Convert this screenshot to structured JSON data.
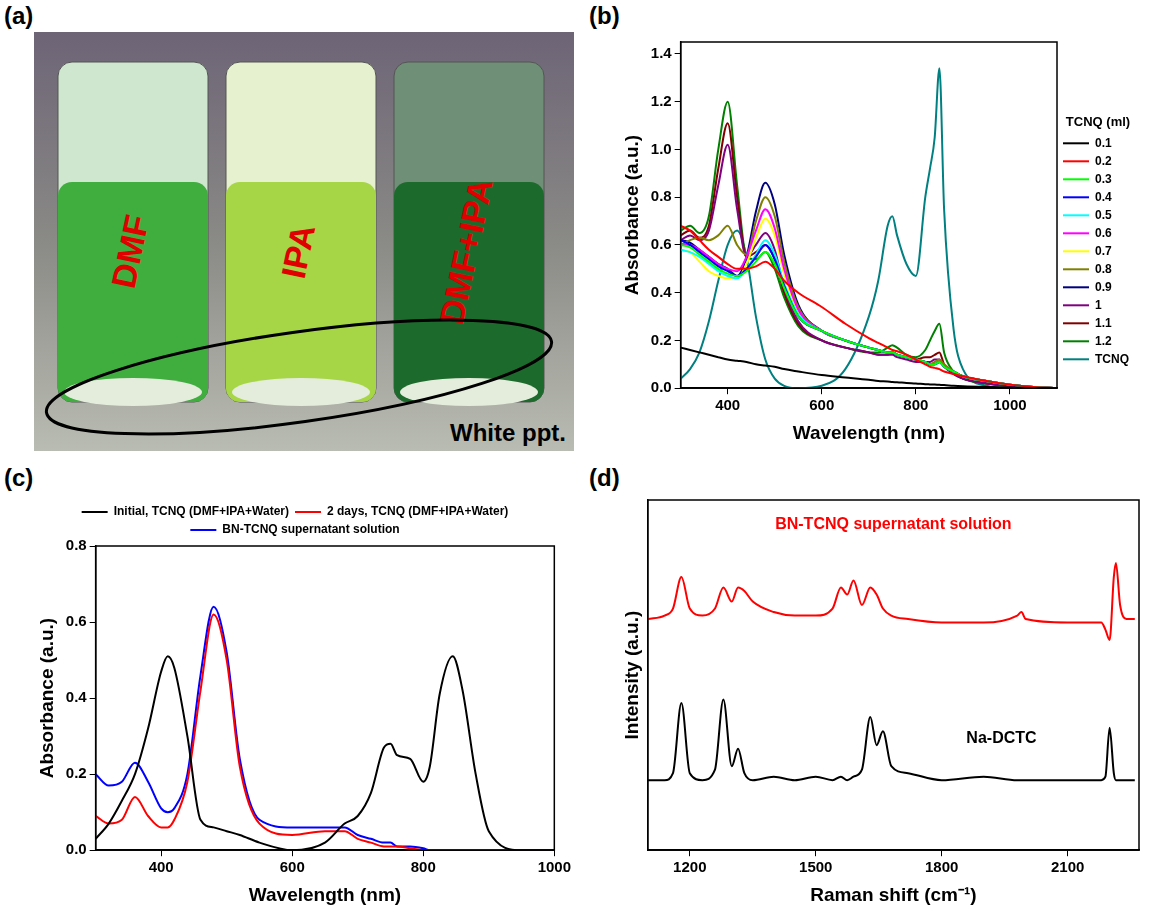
{
  "chart_data": [
    {
      "type": "photo",
      "panel": "(a)",
      "labels": [
        "DMF",
        "IPA",
        "DMF+IPA"
      ],
      "annotations": [
        {
          "text": "White ppt."
        }
      ]
    },
    {
      "type": "line",
      "panel": "(b)",
      "x_label": "Wavelength (nm)",
      "y_label": "Absorbance (a.u.)",
      "x": [
        300,
        320,
        340,
        360,
        380,
        400,
        420,
        440,
        460,
        480,
        500,
        520,
        550,
        600,
        650,
        700,
        720,
        740,
        750,
        760,
        780,
        800,
        820,
        830,
        840,
        850,
        860,
        880,
        900,
        950,
        1000,
        1050,
        1100
      ],
      "series": [
        {
          "name": "0.1",
          "color": "#000000",
          "values": [
            0.17,
            0.16,
            0.15,
            0.14,
            0.13,
            0.12,
            0.115,
            0.11,
            0.1,
            0.095,
            0.09,
            0.08,
            0.07,
            0.055,
            0.045,
            0.035,
            0.03,
            0.028,
            0.026,
            0.025,
            0.022,
            0.02,
            0.017,
            0.016,
            0.015,
            0.014,
            0.013,
            0.01,
            0.008,
            0.005,
            0.003,
            0.001,
            0
          ]
        },
        {
          "name": "0.2",
          "color": "#ff0000",
          "values": [
            0.68,
            0.66,
            0.62,
            0.58,
            0.55,
            0.52,
            0.5,
            0.5,
            0.51,
            0.53,
            0.5,
            0.45,
            0.4,
            0.34,
            0.27,
            0.21,
            0.19,
            0.17,
            0.16,
            0.155,
            0.14,
            0.12,
            0.1,
            0.09,
            0.085,
            0.08,
            0.07,
            0.06,
            0.05,
            0.03,
            0.015,
            0.005,
            0
          ]
        },
        {
          "name": "0.3",
          "color": "#00ff00",
          "values": [
            0.6,
            0.59,
            0.56,
            0.53,
            0.5,
            0.48,
            0.47,
            0.49,
            0.53,
            0.57,
            0.52,
            0.42,
            0.3,
            0.24,
            0.2,
            0.17,
            0.16,
            0.15,
            0.15,
            0.14,
            0.13,
            0.12,
            0.11,
            0.1,
            0.1,
            0.11,
            0.09,
            0.07,
            0.05,
            0.03,
            0.015,
            0.005,
            0
          ]
        },
        {
          "name": "0.4",
          "color": "#0000ff",
          "values": [
            0.62,
            0.6,
            0.57,
            0.54,
            0.51,
            0.49,
            0.47,
            0.5,
            0.55,
            0.6,
            0.54,
            0.43,
            0.3,
            0.24,
            0.2,
            0.17,
            0.16,
            0.15,
            0.15,
            0.14,
            0.13,
            0.12,
            0.11,
            0.1,
            0.1,
            0.11,
            0.09,
            0.07,
            0.05,
            0.03,
            0.015,
            0.005,
            0
          ]
        },
        {
          "name": "0.5",
          "color": "#00ffff",
          "values": [
            0.58,
            0.57,
            0.55,
            0.52,
            0.49,
            0.47,
            0.46,
            0.5,
            0.56,
            0.62,
            0.56,
            0.44,
            0.31,
            0.24,
            0.2,
            0.17,
            0.16,
            0.15,
            0.15,
            0.14,
            0.13,
            0.12,
            0.11,
            0.1,
            0.1,
            0.11,
            0.09,
            0.07,
            0.05,
            0.03,
            0.015,
            0.005,
            0
          ]
        },
        {
          "name": "0.6",
          "color": "#ff00ff",
          "values": [
            0.6,
            0.6,
            0.58,
            0.55,
            0.52,
            0.5,
            0.49,
            0.55,
            0.66,
            0.75,
            0.67,
            0.5,
            0.33,
            0.24,
            0.2,
            0.17,
            0.16,
            0.15,
            0.15,
            0.14,
            0.13,
            0.12,
            0.11,
            0.1,
            0.1,
            0.11,
            0.09,
            0.07,
            0.05,
            0.03,
            0.015,
            0.005,
            0
          ]
        },
        {
          "name": "0.7",
          "color": "#ffff00",
          "values": [
            0.58,
            0.57,
            0.53,
            0.49,
            0.47,
            0.46,
            0.46,
            0.52,
            0.63,
            0.71,
            0.64,
            0.48,
            0.32,
            0.24,
            0.2,
            0.17,
            0.16,
            0.15,
            0.15,
            0.14,
            0.13,
            0.12,
            0.11,
            0.1,
            0.1,
            0.11,
            0.09,
            0.07,
            0.05,
            0.03,
            0.015,
            0.005,
            0
          ]
        },
        {
          "name": "0.8",
          "color": "#808000",
          "values": [
            0.6,
            0.62,
            0.63,
            0.62,
            0.64,
            0.68,
            0.6,
            0.56,
            0.7,
            0.8,
            0.72,
            0.53,
            0.34,
            0.24,
            0.2,
            0.17,
            0.16,
            0.15,
            0.15,
            0.14,
            0.13,
            0.12,
            0.11,
            0.1,
            0.11,
            0.12,
            0.1,
            0.07,
            0.05,
            0.03,
            0.015,
            0.005,
            0
          ]
        },
        {
          "name": "0.9",
          "color": "#000080",
          "values": [
            0.62,
            0.61,
            0.58,
            0.55,
            0.52,
            0.5,
            0.47,
            0.55,
            0.74,
            0.86,
            0.77,
            0.56,
            0.35,
            0.24,
            0.2,
            0.17,
            0.16,
            0.15,
            0.15,
            0.14,
            0.13,
            0.12,
            0.11,
            0.1,
            0.1,
            0.11,
            0.09,
            0.07,
            0.05,
            0.03,
            0.015,
            0.005,
            0
          ]
        },
        {
          "name": "1",
          "color": "#800080",
          "values": [
            0.62,
            0.64,
            0.62,
            0.66,
            0.85,
            1.02,
            0.75,
            0.55,
            0.6,
            0.65,
            0.58,
            0.42,
            0.28,
            0.2,
            0.17,
            0.15,
            0.14,
            0.14,
            0.14,
            0.13,
            0.12,
            0.11,
            0.11,
            0.11,
            0.12,
            0.12,
            0.09,
            0.06,
            0.04,
            0.02,
            0.01,
            0.005,
            0
          ]
        },
        {
          "name": "1.1",
          "color": "#800000",
          "values": [
            0.64,
            0.66,
            0.63,
            0.68,
            0.92,
            1.11,
            0.8,
            0.55,
            0.57,
            0.6,
            0.54,
            0.4,
            0.27,
            0.2,
            0.17,
            0.15,
            0.14,
            0.14,
            0.15,
            0.14,
            0.13,
            0.12,
            0.13,
            0.13,
            0.14,
            0.15,
            0.1,
            0.06,
            0.04,
            0.02,
            0.01,
            0.005,
            0
          ]
        },
        {
          "name": "1.2",
          "color": "#008000",
          "values": [
            0.66,
            0.68,
            0.65,
            0.72,
            1.0,
            1.2,
            0.85,
            0.55,
            0.54,
            0.57,
            0.5,
            0.38,
            0.26,
            0.2,
            0.17,
            0.15,
            0.15,
            0.17,
            0.18,
            0.17,
            0.14,
            0.13,
            0.16,
            0.2,
            0.24,
            0.27,
            0.15,
            0.07,
            0.04,
            0.02,
            0.01,
            0.005,
            0
          ]
        },
        {
          "name": "TCNQ",
          "color": "#008080",
          "values": [
            0.04,
            0.08,
            0.15,
            0.28,
            0.45,
            0.6,
            0.66,
            0.55,
            0.3,
            0.12,
            0.04,
            0.01,
            0,
            0.01,
            0.08,
            0.3,
            0.45,
            0.68,
            0.72,
            0.64,
            0.52,
            0.47,
            0.8,
            0.92,
            1.05,
            1.34,
            0.75,
            0.25,
            0.08,
            0.01,
            0,
            0,
            0
          ]
        }
      ],
      "xlim": [
        300,
        1100
      ],
      "xticks": [
        400,
        600,
        800,
        1000
      ],
      "ylim": [
        0,
        1.45
      ],
      "yticks": [
        {
          "value": 0,
          "label": "0.0"
        },
        0.2,
        0.4,
        0.6,
        0.8,
        {
          "value": 1,
          "label": "1.0"
        },
        1.2,
        1.4
      ],
      "grid": false,
      "legend": "right",
      "legend_title": "TCNQ (ml)"
    },
    {
      "type": "line",
      "panel": "(c)",
      "x_label": "Wavelength (nm)",
      "y_label": "Absorbance (a.u.)",
      "x": [
        300,
        320,
        340,
        360,
        380,
        400,
        410,
        420,
        440,
        460,
        480,
        500,
        520,
        550,
        600,
        650,
        680,
        700,
        720,
        740,
        750,
        760,
        780,
        800,
        810,
        825,
        845,
        860,
        880,
        900,
        950,
        1000
      ],
      "series": [
        {
          "name": "Initial, TCNQ (DMF+IPA+Water)",
          "color": "#000000",
          "values": [
            0.03,
            0.07,
            0.13,
            0.2,
            0.32,
            0.47,
            0.51,
            0.48,
            0.3,
            0.08,
            0.06,
            0.05,
            0.04,
            0.02,
            0,
            0.02,
            0.07,
            0.09,
            0.15,
            0.27,
            0.28,
            0.25,
            0.24,
            0.18,
            0.22,
            0.41,
            0.51,
            0.42,
            0.2,
            0.05,
            0,
            0
          ]
        },
        {
          "name": "2 days, TCNQ (DMF+IPA+Water)",
          "color": "#ff0000",
          "values": [
            0.09,
            0.07,
            0.08,
            0.14,
            0.09,
            0.06,
            0.06,
            0.08,
            0.18,
            0.42,
            0.62,
            0.5,
            0.22,
            0.07,
            0.04,
            0.05,
            0.05,
            0.03,
            0.02,
            0.01,
            0.01,
            0.01,
            0.005,
            0,
            0,
            0,
            0,
            0,
            0,
            0,
            0,
            0
          ]
        },
        {
          "name": "BN-TCNQ supernatant solution",
          "color": "#0000ff",
          "values": [
            0.2,
            0.17,
            0.18,
            0.23,
            0.18,
            0.11,
            0.1,
            0.11,
            0.2,
            0.46,
            0.64,
            0.52,
            0.24,
            0.08,
            0.06,
            0.06,
            0.06,
            0.04,
            0.03,
            0.02,
            0.02,
            0.01,
            0.01,
            0.005,
            0,
            0,
            0,
            0,
            0,
            0,
            0,
            0
          ]
        }
      ],
      "xlim": [
        300,
        1000
      ],
      "xticks": [
        400,
        600,
        800,
        1000
      ],
      "ylim": [
        0,
        0.8
      ],
      "yticks": [
        {
          "value": 0,
          "label": "0.0"
        },
        0.2,
        0.4,
        0.6,
        0.8
      ],
      "grid": false,
      "legend": "top"
    },
    {
      "type": "line",
      "panel": "(d)",
      "x_label": "Raman shift (cm⁻¹)",
      "y_label": "Intensity (a.u.)",
      "x": [
        1100,
        1140,
        1160,
        1180,
        1200,
        1230,
        1260,
        1280,
        1300,
        1315,
        1330,
        1350,
        1400,
        1450,
        1500,
        1540,
        1560,
        1575,
        1590,
        1610,
        1630,
        1645,
        1660,
        1680,
        1720,
        1800,
        1900,
        1980,
        1990,
        2000,
        2100,
        2180,
        2190,
        2200,
        2210,
        2215,
        2225,
        2240,
        2260
      ],
      "series": [
        {
          "name": "BN-TCNQ supernatant solution",
          "color": "#ff0000",
          "values": [
            6.6,
            6.7,
            6.9,
            7.8,
            6.9,
            6.7,
            6.9,
            7.5,
            7.1,
            7.5,
            7.4,
            7.1,
            6.8,
            6.7,
            6.7,
            6.9,
            7.5,
            7.3,
            7.7,
            7.0,
            7.5,
            7.3,
            6.9,
            6.7,
            6.6,
            6.5,
            6.5,
            6.7,
            6.8,
            6.6,
            6.5,
            6.5,
            6.3,
            6.0,
            7.8,
            8.2,
            7.0,
            6.6,
            6.6
          ]
        },
        {
          "name": "Na-DCTC",
          "color": "#000000",
          "values": [
            2.0,
            2.0,
            2.2,
            4.2,
            2.2,
            2.0,
            2.3,
            4.3,
            2.4,
            2.9,
            2.2,
            2.0,
            2.1,
            2.0,
            2.1,
            2.0,
            2.1,
            2.0,
            2.1,
            2.3,
            3.8,
            3.0,
            3.4,
            2.4,
            2.2,
            2.0,
            2.1,
            2.0,
            2.0,
            2.0,
            2.0,
            2.0,
            2.1,
            3.5,
            2.2,
            2.0,
            2.0,
            2.0,
            2.0
          ]
        }
      ],
      "xlim": [
        1100,
        2270
      ],
      "xticks": [
        1200,
        1500,
        1800,
        2100
      ],
      "ylim": [
        0,
        10
      ],
      "grid": false,
      "tick_labels": "x"
    }
  ]
}
